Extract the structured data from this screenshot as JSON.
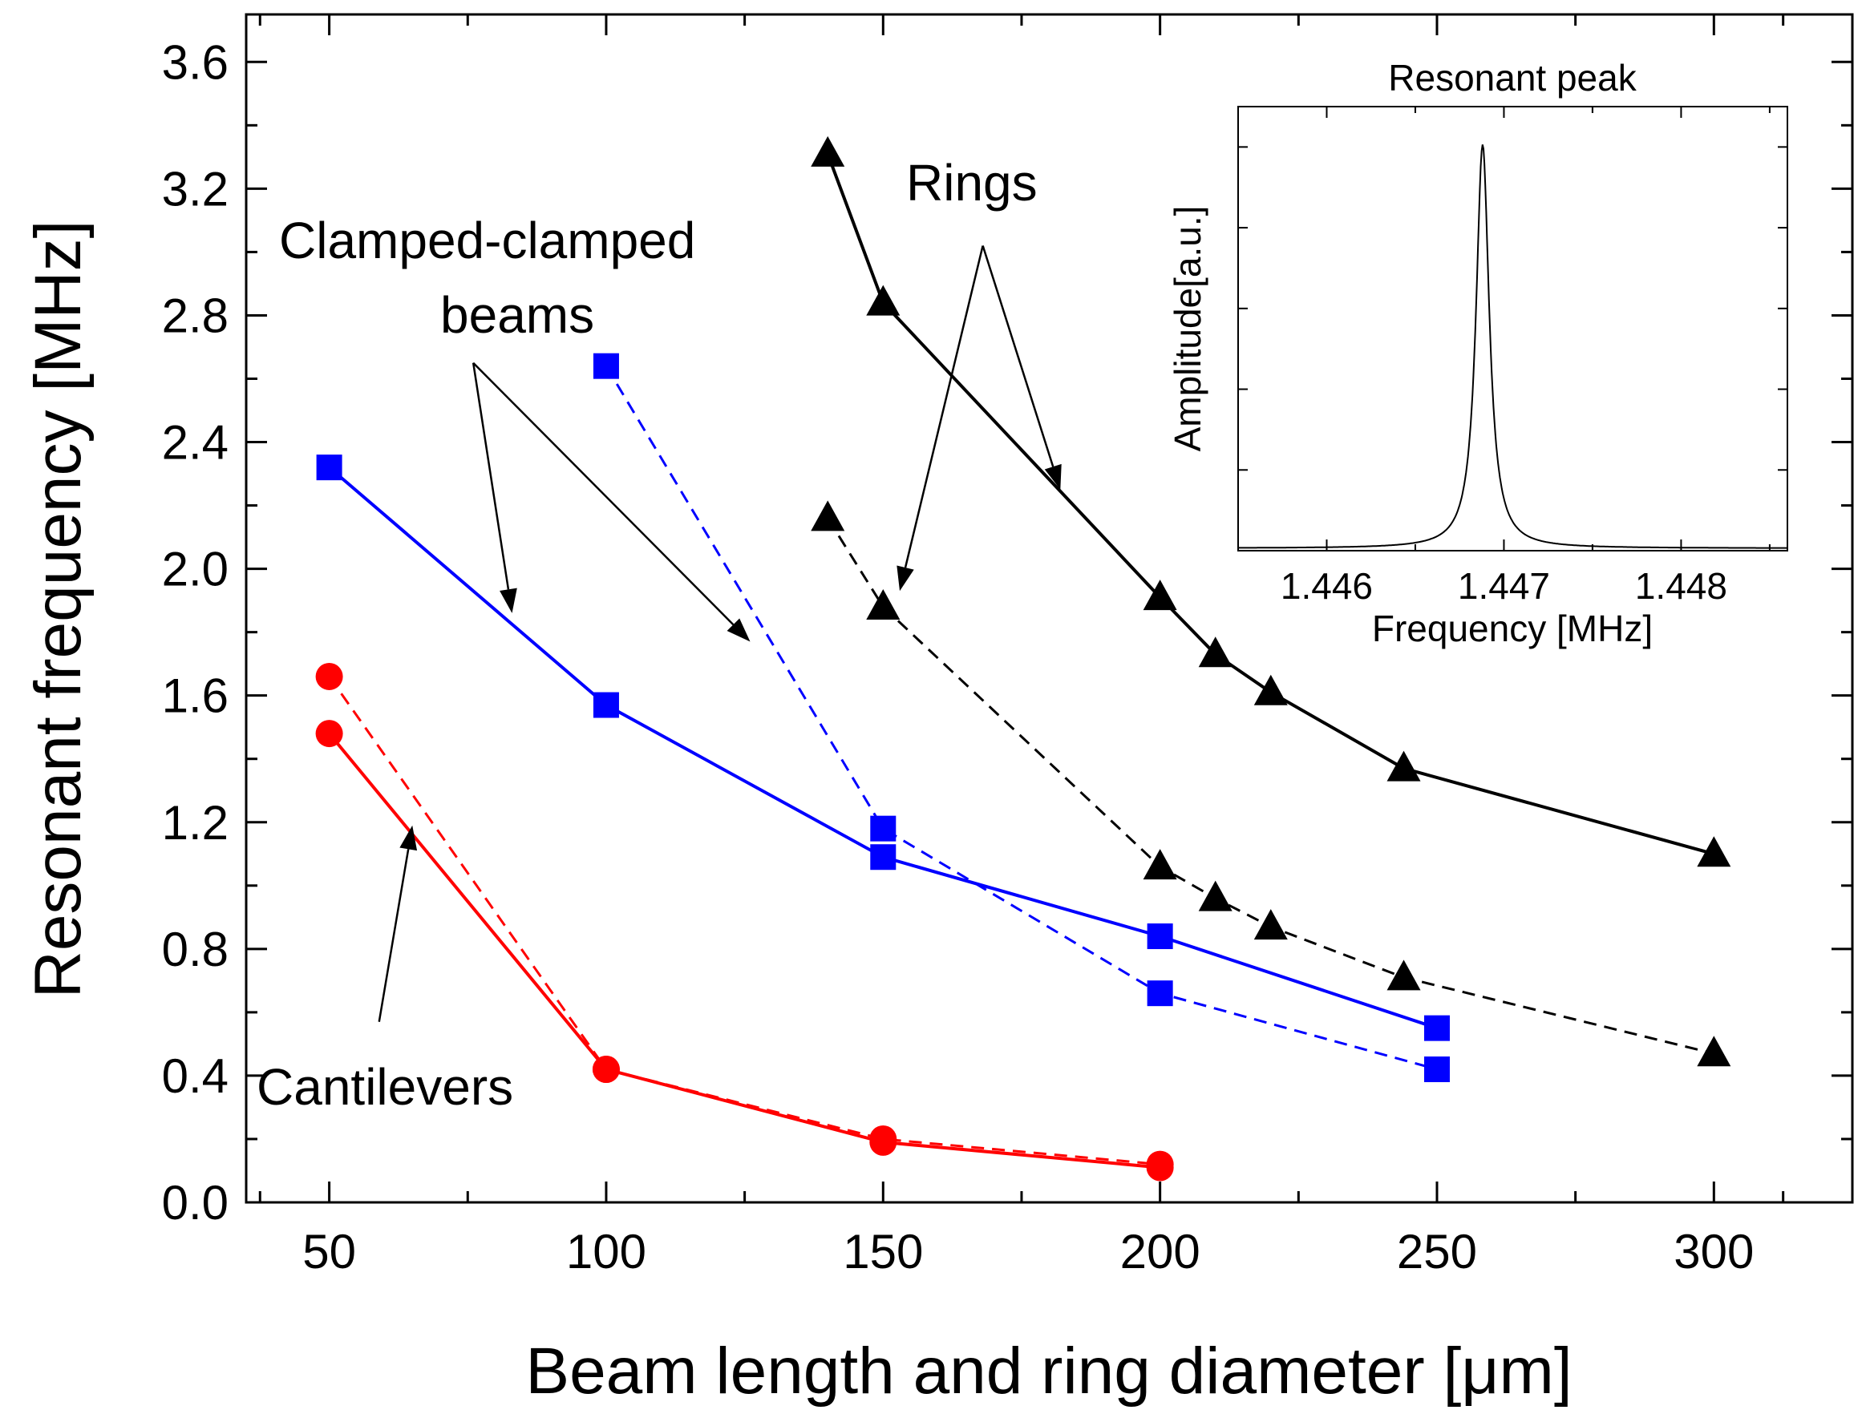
{
  "chart_data": {
    "type": "line",
    "title": "",
    "xlabel": "Beam length and ring diameter [μm]",
    "ylabel": "Resonant frequency [MHz]",
    "xlim": [
      35,
      325
    ],
    "ylim": [
      0.0,
      3.75
    ],
    "xticks": [
      50,
      100,
      150,
      200,
      250,
      300
    ],
    "yticks": [
      0.0,
      0.4,
      0.8,
      1.2,
      1.6,
      2.0,
      2.4,
      2.8,
      3.2,
      3.6
    ],
    "xtick_labels": [
      "50",
      "100",
      "150",
      "200",
      "250",
      "300"
    ],
    "ytick_labels": [
      "0.0",
      "0.4",
      "0.8",
      "1.2",
      "1.6",
      "2.0",
      "2.4",
      "2.8",
      "3.2",
      "3.6"
    ],
    "grid": false,
    "series": [
      {
        "name": "Rings (solid)",
        "marker": "triangle",
        "color": "#000000",
        "dash": false,
        "x": [
          140,
          150,
          200,
          210,
          220,
          244,
          300
        ],
        "y": [
          3.31,
          2.84,
          1.91,
          1.73,
          1.61,
          1.37,
          1.1
        ]
      },
      {
        "name": "Rings (dashed)",
        "marker": "triangle",
        "color": "#000000",
        "dash": true,
        "x": [
          140,
          150,
          200,
          210,
          220,
          244,
          300
        ],
        "y": [
          2.16,
          1.88,
          1.06,
          0.96,
          0.87,
          0.71,
          0.47
        ]
      },
      {
        "name": "Clamped-clamped beams (solid)",
        "marker": "square",
        "color": "#0000ff",
        "dash": false,
        "x": [
          50,
          100,
          150,
          200,
          250
        ],
        "y": [
          2.32,
          1.57,
          1.09,
          0.84,
          0.55
        ]
      },
      {
        "name": "Clamped-clamped beams (dashed)",
        "marker": "square",
        "color": "#0000ff",
        "dash": true,
        "x": [
          100,
          150,
          200,
          250
        ],
        "y": [
          2.64,
          1.18,
          0.66,
          0.42
        ]
      },
      {
        "name": "Cantilevers (solid)",
        "marker": "circle",
        "color": "#ff0000",
        "dash": false,
        "x": [
          50,
          100,
          150,
          200
        ],
        "y": [
          1.48,
          0.42,
          0.19,
          0.11
        ]
      },
      {
        "name": "Cantilevers (dashed)",
        "marker": "circle",
        "color": "#ff0000",
        "dash": true,
        "x": [
          50,
          100,
          150,
          200
        ],
        "y": [
          1.66,
          0.42,
          0.2,
          0.12
        ]
      }
    ],
    "annotations": {
      "clamped_line1": "Clamped-clamped",
      "clamped_line2": "beams",
      "rings": "Rings",
      "cantilevers": "Cantilevers"
    },
    "arrows": [
      {
        "label": "clamped-to-solid",
        "from": [
          76,
          2.65
        ],
        "to": [
          83,
          1.86
        ]
      },
      {
        "label": "clamped-to-dashed",
        "from": [
          76,
          2.65
        ],
        "to": [
          126,
          1.77
        ]
      },
      {
        "label": "rings-to-dashed",
        "from": [
          168,
          3.02
        ],
        "to": [
          153,
          1.93
        ]
      },
      {
        "label": "rings-to-solid",
        "from": [
          168,
          3.02
        ],
        "to": [
          182,
          2.25
        ]
      },
      {
        "label": "cantilevers-to-solid",
        "from": [
          59,
          0.57
        ],
        "to": [
          65,
          1.19
        ]
      }
    ],
    "inset": {
      "type": "line",
      "title": "Resonant peak",
      "xlabel": "Frequency [MHz]",
      "ylabel": "Amplitude[a.u.]",
      "xlim": [
        1.4455,
        1.4486
      ],
      "ylim": [
        0,
        1.1
      ],
      "xticks": [
        1.446,
        1.447,
        1.448
      ],
      "xtick_labels": [
        "1.446",
        "1.447",
        "1.448"
      ],
      "peak_center": 1.44688,
      "peak_halfwidth": 4.5e-05,
      "peak_amplitude": 1.0
    }
  }
}
